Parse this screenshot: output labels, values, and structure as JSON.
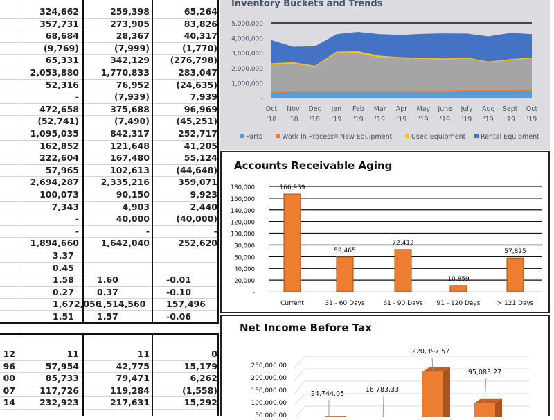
{
  "upper_table": {
    "rows": [
      [
        "324,662",
        "259,398",
        "65,264"
      ],
      [
        "357,731",
        "273,905",
        "83,826"
      ],
      [
        "68,684",
        "28,367",
        "40,317"
      ],
      [
        "(9,769)",
        "(7,999)",
        "(1,770)"
      ],
      [
        "65,331",
        "342,129",
        "(276,798)"
      ],
      [
        "2,053,880",
        "1,770,833",
        "283,047"
      ],
      [
        "52,316",
        "76,952",
        "(24,635)"
      ],
      [
        "-",
        "(7,939)",
        "7,939"
      ],
      [
        "472,658",
        "375,688",
        "96,969"
      ],
      [
        "(52,741)",
        "(7,490)",
        "(45,251)"
      ],
      [
        "1,095,035",
        "842,317",
        "252,717"
      ],
      [
        "162,852",
        "121,648",
        "41,205"
      ],
      [
        "222,604",
        "167,480",
        "55,124"
      ],
      [
        "57,965",
        "102,613",
        "(44,648)"
      ],
      [
        "2,694,287",
        "2,335,216",
        "359,071"
      ],
      [
        "100,073",
        "90,150",
        "9,923"
      ],
      [
        "7,343",
        "4,903",
        "2,440"
      ],
      [
        "-",
        "40,000",
        "(40,000)"
      ],
      [
        "-",
        "-",
        "-"
      ],
      [
        "1,894,660",
        "1,642,040",
        "252,620"
      ],
      [
        "3.37",
        "",
        ""
      ],
      [
        "0.45",
        "",
        ""
      ],
      [
        "1.58",
        "1.60",
        "-0.01"
      ],
      [
        "0.27",
        "0.37",
        "-0.10"
      ],
      [
        "1,672,056",
        "1,514,560",
        "157,496"
      ],
      [
        "1.51",
        "1.57",
        "-0.06"
      ]
    ],
    "left_aligned_from": 20
  },
  "lower_table": {
    "rows": [
      [
        "12",
        "11",
        "11",
        "0"
      ],
      [
        "96",
        "57,954",
        "42,775",
        "15,179"
      ],
      [
        "00",
        "85,733",
        "79,471",
        "6,262"
      ],
      [
        "07",
        "117,726",
        "119,284",
        "(1,558)"
      ],
      [
        "14",
        "232,923",
        "217,631",
        "15,292"
      ]
    ]
  },
  "chart_data": [
    {
      "type": "area",
      "title": "Inventory Buckets and Trends",
      "stacked": true,
      "categories": [
        [
          "Oct",
          "'18"
        ],
        [
          "Nov",
          "'18"
        ],
        [
          "Dec",
          "'18"
        ],
        [
          "Jan",
          "'19"
        ],
        [
          "Feb",
          "'19"
        ],
        [
          "Mar",
          "'19"
        ],
        [
          "Apr",
          "'19"
        ],
        [
          "May",
          "'19"
        ],
        [
          "June",
          "'19"
        ],
        [
          "July",
          "'19"
        ],
        [
          "Aug",
          "'19"
        ],
        [
          "Sept",
          "'19"
        ],
        [
          "Oct",
          "'19"
        ]
      ],
      "ylim": [
        0,
        5000000
      ],
      "yticks": [
        "-",
        "1,000,000",
        "2,000,000",
        "3,000,000",
        "4,000,000",
        "5,000,000"
      ],
      "legend": "bottom",
      "series": [
        {
          "name": "Parts",
          "color": "#5b9bd5",
          "values": [
            350000,
            400000,
            400000,
            400000,
            400000,
            400000,
            400000,
            400000,
            400000,
            420000,
            420000,
            420000,
            420000
          ]
        },
        {
          "name": "Work In Process",
          "color": "#ed7d31",
          "values": [
            50000,
            80000,
            80000,
            80000,
            80000,
            80000,
            80000,
            100000,
            100000,
            100000,
            100000,
            100000,
            130000
          ]
        },
        {
          "name": "New Equipment",
          "color": "#a5a5a5",
          "values": [
            1800000,
            1800000,
            1600000,
            2500000,
            2500000,
            2200000,
            2150000,
            2100000,
            2050000,
            2100000,
            1850000,
            2000000,
            2070000
          ]
        },
        {
          "name": "Used Equipment",
          "color": "#ffc000",
          "values": [
            100000,
            100000,
            50000,
            100000,
            120000,
            120000,
            70000,
            70000,
            70000,
            70000,
            50000,
            60000,
            60000
          ]
        },
        {
          "name": "Rental Equipment",
          "color": "#4472c4",
          "values": [
            1550000,
            1020000,
            1300000,
            1170000,
            1300000,
            1450000,
            1500000,
            1600000,
            1680000,
            1600000,
            1680000,
            1750000,
            1570000
          ]
        }
      ]
    },
    {
      "type": "bar",
      "title": "Accounts Receivable Aging",
      "categories": [
        "Current",
        "31 - 60 Days",
        "61 - 90 Days",
        "91 - 120 Days",
        "> 121 Days"
      ],
      "values": [
        166939,
        59465,
        72412,
        10859,
        57825
      ],
      "labels": [
        "166,939",
        "59,465",
        "72,412",
        "10,859",
        "57,825"
      ],
      "ylim": [
        0,
        180000
      ],
      "yticks": [
        "-",
        "20,000",
        "40,000",
        "60,000",
        "80,000",
        "100,000",
        "120,000",
        "140,000",
        "160,000",
        "180,000"
      ]
    },
    {
      "type": "bar",
      "title": "Net Income Before Tax",
      "values": [
        24744.05,
        16783.33,
        220397.57,
        95083.27
      ],
      "labels": [
        "24,744.05",
        "16,783.33",
        "220,397.57",
        "95,083.27"
      ],
      "yticks": [
        "50,000.00",
        "100,000.00",
        "150,000.00",
        "200,000.00",
        "250,000.00"
      ],
      "ylim": [
        0,
        250000
      ]
    }
  ]
}
